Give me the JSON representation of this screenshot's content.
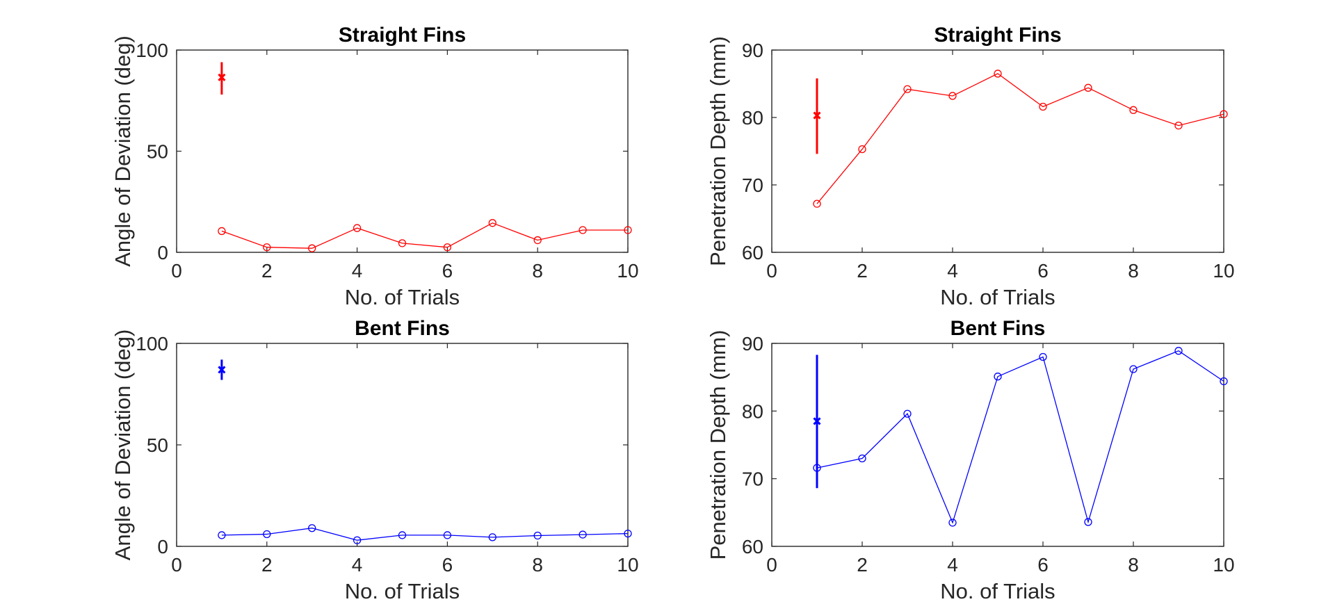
{
  "chart_data": [
    {
      "type": "line",
      "title": "Straight Fins",
      "xlabel": "No. of Trials",
      "ylabel": "Angle of Deviation (deg)",
      "xlim": [
        0,
        10
      ],
      "ylim": [
        0,
        100
      ],
      "xticks": [
        "0",
        "2",
        "4",
        "6",
        "8",
        "10"
      ],
      "yticks": [
        "0",
        "50",
        "100"
      ],
      "color": "#ff0000",
      "series": [
        {
          "x": [
            1,
            2,
            3,
            4,
            5,
            6,
            7,
            8,
            9,
            10
          ],
          "values": [
            10.5,
            2.5,
            2,
            12,
            4.5,
            2.5,
            14.5,
            6,
            11,
            11
          ]
        }
      ],
      "errorbar": {
        "x": 1,
        "mean": 86.5,
        "low": 78,
        "high": 94
      },
      "grid": false
    },
    {
      "type": "line",
      "title": "Straight Fins",
      "xlabel": "No. of Trials",
      "ylabel": "Penetration Depth (mm)",
      "xlim": [
        0,
        10
      ],
      "ylim": [
        60,
        90
      ],
      "xticks": [
        "0",
        "2",
        "4",
        "6",
        "8",
        "10"
      ],
      "yticks": [
        "60",
        "70",
        "80",
        "90"
      ],
      "color": "#ff0000",
      "series": [
        {
          "x": [
            1,
            2,
            3,
            4,
            5,
            6,
            7,
            8,
            9,
            10
          ],
          "values": [
            67.2,
            75.3,
            84.2,
            83.2,
            86.5,
            81.6,
            84.4,
            81.1,
            78.8,
            80.5
          ]
        }
      ],
      "errorbar": {
        "x": 1,
        "mean": 80.3,
        "low": 74.6,
        "high": 85.8
      },
      "grid": false
    },
    {
      "type": "line",
      "title": "Bent Fins",
      "xlabel": "No. of Trials",
      "ylabel": "Angle of Deviation (deg)",
      "xlim": [
        0,
        10
      ],
      "ylim": [
        0,
        100
      ],
      "xticks": [
        "0",
        "2",
        "4",
        "6",
        "8",
        "10"
      ],
      "yticks": [
        "0",
        "50",
        "100"
      ],
      "color": "#0000ff",
      "series": [
        {
          "x": [
            1,
            2,
            3,
            4,
            5,
            6,
            7,
            8,
            9,
            10
          ],
          "values": [
            5.5,
            6,
            9,
            3,
            5.5,
            5.5,
            4.5,
            5.3,
            5.8,
            6.3
          ]
        }
      ],
      "errorbar": {
        "x": 1,
        "mean": 87,
        "low": 82,
        "high": 92
      },
      "grid": false
    },
    {
      "type": "line",
      "title": "Bent Fins",
      "xlabel": "No. of Trials",
      "ylabel": "Penetration Depth (mm)",
      "xlim": [
        0,
        10
      ],
      "ylim": [
        60,
        90
      ],
      "xticks": [
        "0",
        "2",
        "4",
        "6",
        "8",
        "10"
      ],
      "yticks": [
        "60",
        "70",
        "80",
        "90"
      ],
      "color": "#0000ff",
      "series": [
        {
          "x": [
            1,
            2,
            3,
            4,
            5,
            6,
            7,
            8,
            9,
            10
          ],
          "values": [
            71.6,
            73,
            79.6,
            63.5,
            85.1,
            88,
            63.6,
            86.2,
            88.9,
            84.4
          ]
        }
      ],
      "errorbar": {
        "x": 1,
        "mean": 78.5,
        "low": 68.6,
        "high": 88.3
      },
      "grid": false
    }
  ]
}
